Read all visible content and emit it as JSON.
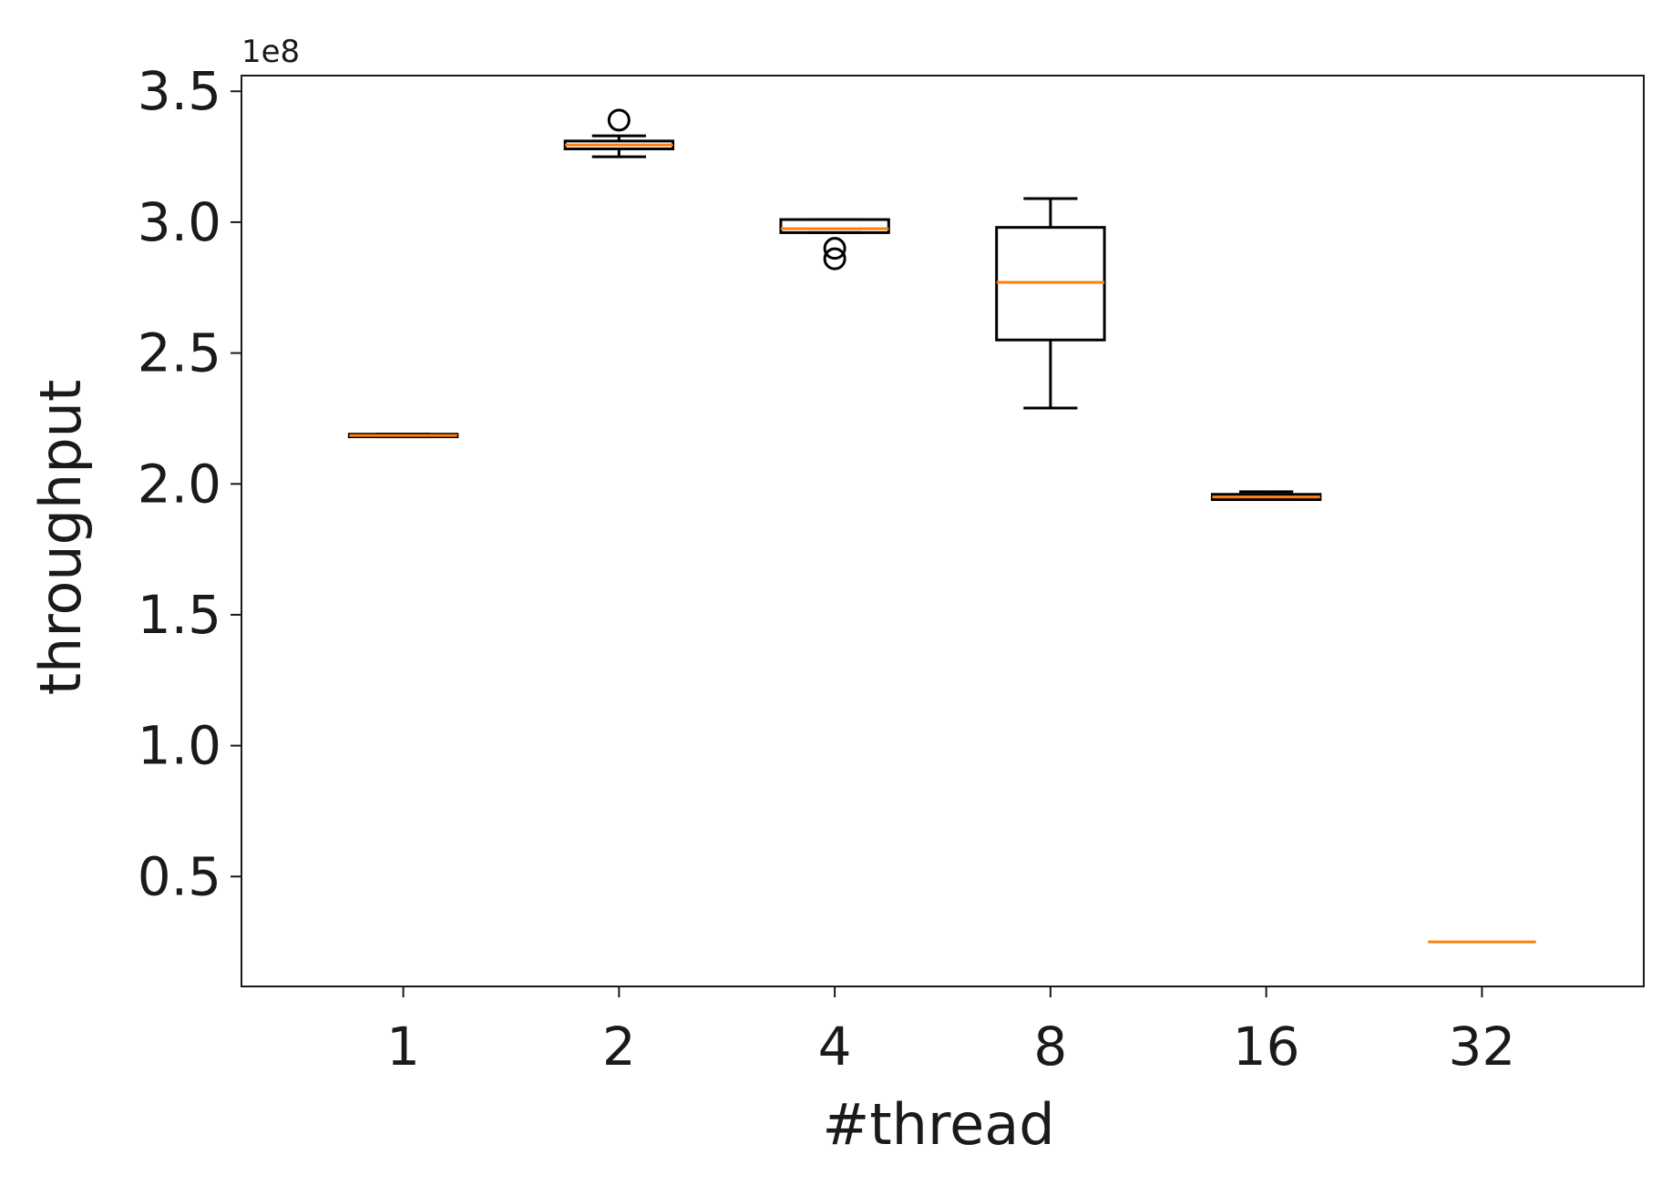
{
  "chart_data": {
    "type": "box",
    "xlabel": "#thread",
    "ylabel": "throughput",
    "offset_label": "1e8",
    "categories": [
      "1",
      "2",
      "4",
      "8",
      "16",
      "32"
    ],
    "ylim": [
      0.08,
      3.56
    ],
    "yticks": [
      0.5,
      1.0,
      1.5,
      2.0,
      2.5,
      3.0,
      3.5
    ],
    "ytick_labels": [
      "0.5",
      "1.0",
      "1.5",
      "2.0",
      "2.5",
      "3.0",
      "3.5"
    ],
    "grid": false,
    "colors": {
      "box": "#000000",
      "median": "#ff7f0e"
    },
    "boxes": [
      {
        "category": "1",
        "whislo": 2.18,
        "q1": 2.18,
        "median": 2.185,
        "q3": 2.19,
        "whishi": 2.19,
        "fliers": []
      },
      {
        "category": "2",
        "whislo": 3.25,
        "q1": 3.28,
        "median": 3.295,
        "q3": 3.31,
        "whishi": 3.33,
        "fliers": [
          3.39
        ]
      },
      {
        "category": "4",
        "whislo": 2.96,
        "q1": 2.96,
        "median": 2.975,
        "q3": 3.01,
        "whishi": 3.01,
        "fliers": [
          2.9,
          2.86
        ]
      },
      {
        "category": "8",
        "whislo": 2.29,
        "q1": 2.55,
        "median": 2.77,
        "q3": 2.98,
        "whishi": 3.09,
        "fliers": []
      },
      {
        "category": "16",
        "whislo": 1.94,
        "q1": 1.94,
        "median": 1.95,
        "q3": 1.96,
        "whishi": 1.97,
        "fliers": []
      },
      {
        "category": "32",
        "whislo": 0.25,
        "q1": 0.25,
        "median": 0.25,
        "q3": 0.25,
        "whishi": 0.25,
        "fliers": []
      }
    ]
  }
}
